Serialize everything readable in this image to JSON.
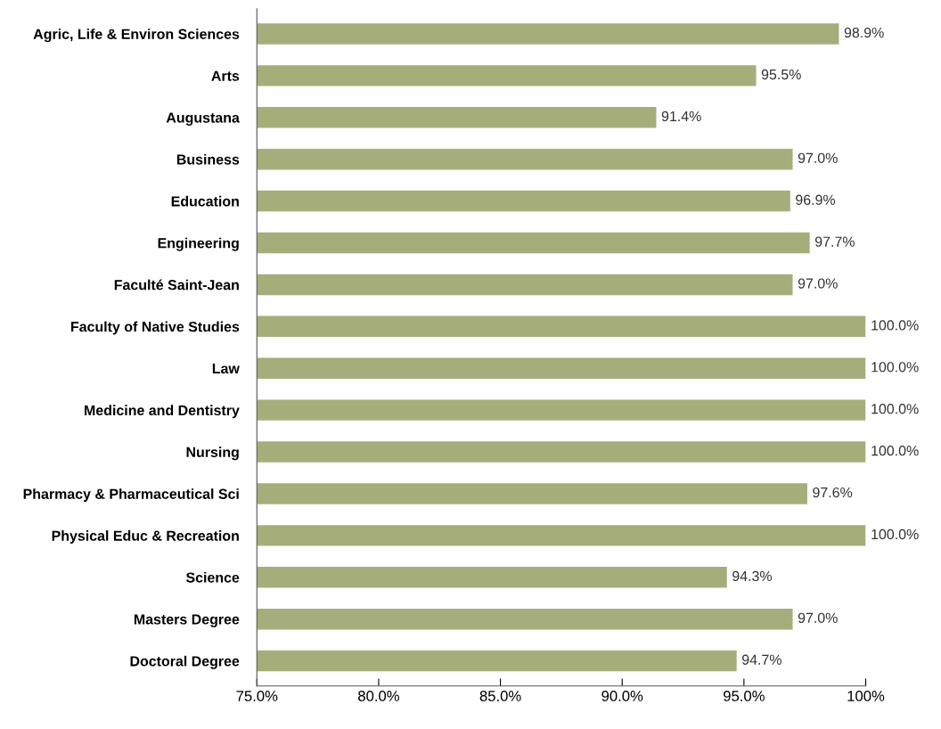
{
  "chart_data": {
    "type": "bar",
    "orientation": "horizontal",
    "categories": [
      "Agric, Life & Environ Sciences",
      "Arts",
      "Augustana",
      "Business",
      "Education",
      "Engineering",
      "Faculté Saint-Jean",
      "Faculty of Native Studies",
      "Law",
      "Medicine and Dentistry",
      "Nursing",
      "Pharmacy & Pharmaceutical Sci",
      "Physical Educ & Recreation",
      "Science",
      "Masters Degree",
      "Doctoral Degree"
    ],
    "values": [
      98.9,
      95.5,
      91.4,
      97.0,
      96.9,
      97.7,
      97.0,
      100.0,
      100.0,
      100.0,
      100.0,
      97.6,
      100.0,
      94.3,
      97.0,
      94.7
    ],
    "value_labels": [
      "98.9%",
      "95.5%",
      "91.4%",
      "97.0%",
      "96.9%",
      "97.7%",
      "97.0%",
      "100.0%",
      "100.0%",
      "100.0%",
      "100.0%",
      "97.6%",
      "100.0%",
      "94.3%",
      "97.0%",
      "94.7%"
    ],
    "color": "#a5ae7a",
    "xlim": [
      75,
      100
    ],
    "xticks": [
      {
        "value": 75,
        "label": "75.0%"
      },
      {
        "value": 80,
        "label": "80.0%"
      },
      {
        "value": 85,
        "label": "85.0%"
      },
      {
        "value": 90,
        "label": "90.0%"
      },
      {
        "value": 95,
        "label": "95.0%"
      },
      {
        "value": 100,
        "label": "100%"
      }
    ],
    "grid": false,
    "legend": false
  }
}
